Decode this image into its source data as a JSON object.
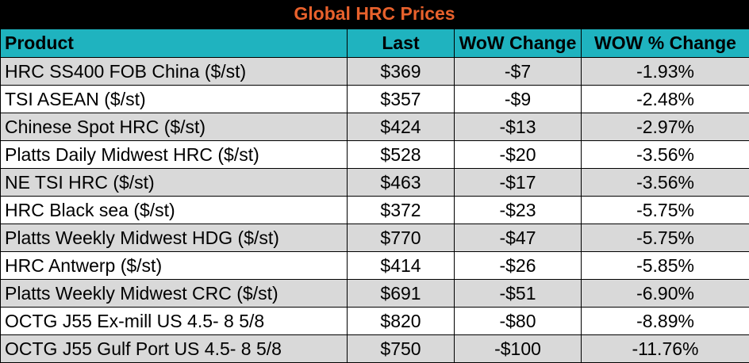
{
  "title": "Global HRC Prices",
  "colors": {
    "title_background": "#000000",
    "title_text": "#e8612c",
    "header_background": "#1fb3bf",
    "row_alt_background": "#d9d9d9"
  },
  "headers": {
    "product": "Product",
    "last": "Last",
    "wow_change": "WoW Change",
    "wow_pct_change": "WOW % Change"
  },
  "rows": [
    {
      "product": "HRC SS400 FOB China ($/st)",
      "last": "$369",
      "wow_change": "-$7",
      "wow_pct_change": "-1.93%"
    },
    {
      "product": "TSI ASEAN ($/st)",
      "last": "$357",
      "wow_change": "-$9",
      "wow_pct_change": "-2.48%"
    },
    {
      "product": "Chinese Spot HRC ($/st)",
      "last": "$424",
      "wow_change": "-$13",
      "wow_pct_change": "-2.97%"
    },
    {
      "product": "Platts Daily Midwest HRC ($/st)",
      "last": "$528",
      "wow_change": "-$20",
      "wow_pct_change": "-3.56%"
    },
    {
      "product": "NE TSI HRC ($/st)",
      "last": "$463",
      "wow_change": "-$17",
      "wow_pct_change": "-3.56%"
    },
    {
      "product": "HRC Black sea ($/st)",
      "last": "$372",
      "wow_change": "-$23",
      "wow_pct_change": "-5.75%"
    },
    {
      "product": "Platts Weekly Midwest HDG ($/st)",
      "last": "$770",
      "wow_change": "-$47",
      "wow_pct_change": "-5.75%"
    },
    {
      "product": "HRC Antwerp ($/st)",
      "last": "$414",
      "wow_change": "-$26",
      "wow_pct_change": "-5.85%"
    },
    {
      "product": "Platts Weekly Midwest CRC ($/st)",
      "last": "$691",
      "wow_change": "-$51",
      "wow_pct_change": "-6.90%"
    },
    {
      "product": "OCTG J55 Ex-mill US 4.5- 8 5/8",
      "last": "$820",
      "wow_change": "-$80",
      "wow_pct_change": "-8.89%"
    },
    {
      "product": "OCTG J55 Gulf Port US 4.5- 8 5/8",
      "last": "$750",
      "wow_change": "-$100",
      "wow_pct_change": "-11.76%"
    }
  ]
}
